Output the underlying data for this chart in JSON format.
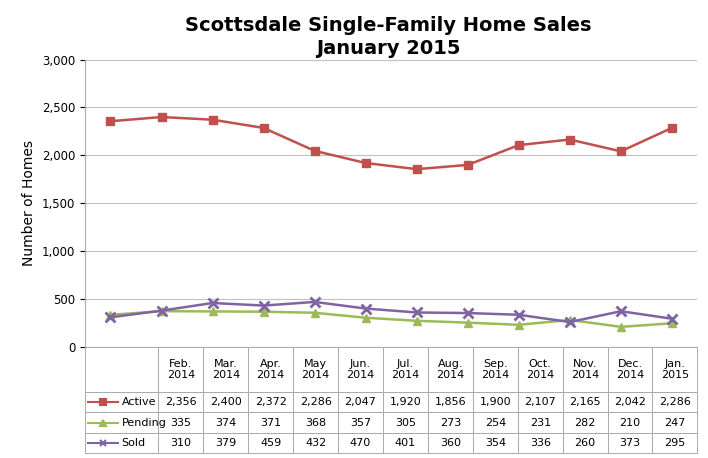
{
  "title_line1": "Scottsdale Single-Family Home Sales",
  "title_line2": "January 2015",
  "x_labels": [
    "Feb.\n2014",
    "Mar.\n2014",
    "Apr.\n2014",
    "May\n2014",
    "Jun.\n2014",
    "Jul.\n2014",
    "Aug.\n2014",
    "Sep.\n2014",
    "Oct.\n2014",
    "Nov.\n2014",
    "Dec.\n2014",
    "Jan.\n2015"
  ],
  "active": [
    2356,
    2400,
    2372,
    2286,
    2047,
    1920,
    1856,
    1900,
    2107,
    2165,
    2042,
    2286
  ],
  "pending": [
    335,
    374,
    371,
    368,
    357,
    305,
    273,
    254,
    231,
    282,
    210,
    247
  ],
  "sold": [
    310,
    379,
    459,
    432,
    470,
    401,
    360,
    354,
    336,
    260,
    373,
    295
  ],
  "active_color": "#C0504D",
  "pending_color": "#9BBB59",
  "sold_color": "#8064A2",
  "active_marker": "s",
  "pending_marker": "^",
  "sold_marker": "x",
  "ylabel": "Number of Homes",
  "ylim": [
    0,
    3000
  ],
  "yticks": [
    0,
    500,
    1000,
    1500,
    2000,
    2500,
    3000
  ],
  "table_active_label": "Active",
  "table_pending_label": "Pending",
  "table_sold_label": "Sold",
  "background_color": "#FFFFFF",
  "grid_color": "#C0C0C0",
  "title_fontsize": 14,
  "axis_fontsize": 10,
  "tick_fontsize": 8.5,
  "table_fontsize": 8
}
